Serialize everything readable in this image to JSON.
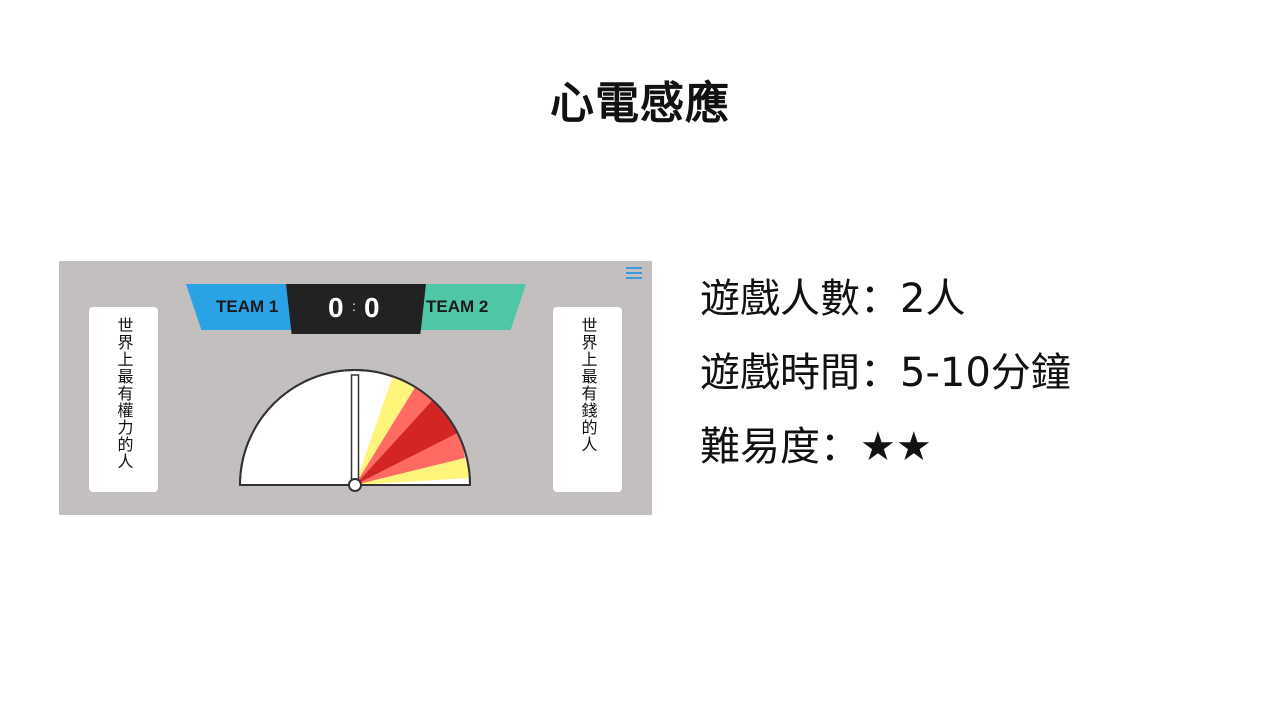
{
  "slide": {
    "title": "心電感應"
  },
  "game": {
    "team_left": "TEAM 1",
    "team_right": "TEAM 2",
    "score_left": "0",
    "score_right": "0",
    "score_separator": ":",
    "card_left": "世界上最有權力的人",
    "card_right": "世界上最有錢的人",
    "menu_icon": "hamburger-menu-icon",
    "gauge_colors": {
      "outer": "#fff57a",
      "middle": "#ff6b63",
      "center": "#d42424"
    }
  },
  "info": {
    "players": "遊戲人數：2人",
    "duration": "遊戲時間：5-10分鐘",
    "difficulty": "難易度：★★"
  }
}
